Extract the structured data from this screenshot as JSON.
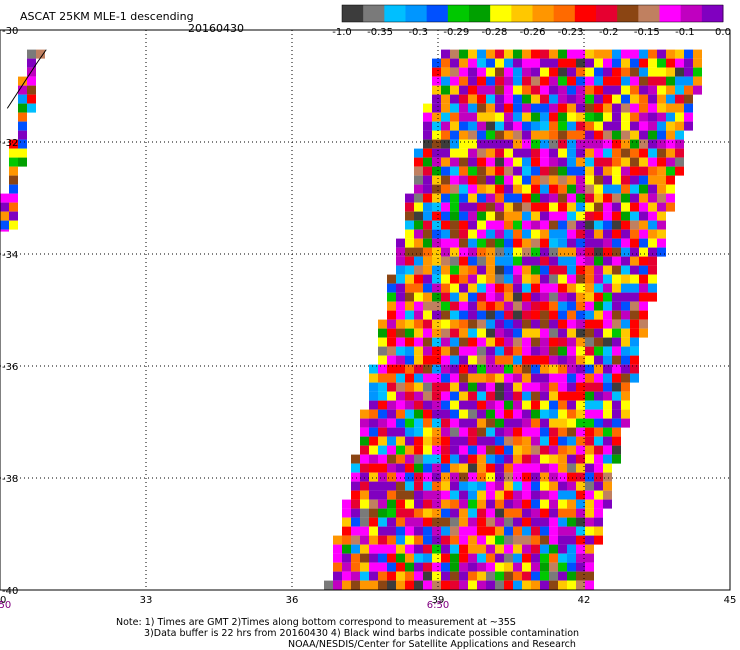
{
  "title": "ASCAT 25KM MLE-1 descending",
  "date": "20160430",
  "colorbar": {
    "colors": [
      "#3c3c3c",
      "#7a7a7a",
      "#00bfff",
      "#0096ff",
      "#0050ff",
      "#00c800",
      "#00a000",
      "#ffff00",
      "#ffc800",
      "#ff9600",
      "#ff6a00",
      "#ff0000",
      "#e60030",
      "#8b4513",
      "#c08060",
      "#ff00ff",
      "#c000c0",
      "#8000c0"
    ],
    "tick_labels": [
      "-1.0",
      "-0.35",
      "-0.3",
      "-0.29",
      "-0.28",
      "-0.26",
      "-0.23",
      "-0.2",
      "-0.15",
      "-0.1",
      "0.0"
    ]
  },
  "notes": [
    "Note: 1) Times are GMT 2)Times along bottom correspond to measurement at ~35S",
    "3)Data buffer is 22 hrs from 20160430 4) Black wind barbs indicate possible contamination",
    "NOAA/NESDIS/Center for Satellite Applications and Research"
  ],
  "chart_data": {
    "type": "heatmap",
    "title": "ASCAT 25KM MLE-1 descending",
    "date": "20160430",
    "x_ticks": [
      "30",
      "33",
      "36",
      "39",
      "42",
      "45"
    ],
    "y_ticks": [
      "-30",
      "-32",
      "-34",
      "-36",
      "-38",
      "-40"
    ],
    "xlim": [
      30,
      45
    ],
    "ylim": [
      -40,
      -30
    ],
    "grid": true,
    "time_labels": [
      {
        "lon": 30,
        "text": "6:50"
      },
      {
        "lon": 39,
        "text": "6:50"
      }
    ],
    "swaths": [
      {
        "name": "west",
        "lat_top": -30.35,
        "lat_bottom": -33.6,
        "lon_left_top": 30.55,
        "lon_left_bottom": 29.95,
        "lon_right_top": 30.75,
        "lon_right_bottom": 30.15
      },
      {
        "name": "main",
        "lat_top": -30.35,
        "lat_bottom": -40.0,
        "lon_left_top": 39.0,
        "lon_left_bottom": 36.7,
        "lon_right_top": 44.4,
        "lon_right_bottom": 42.0
      }
    ]
  }
}
